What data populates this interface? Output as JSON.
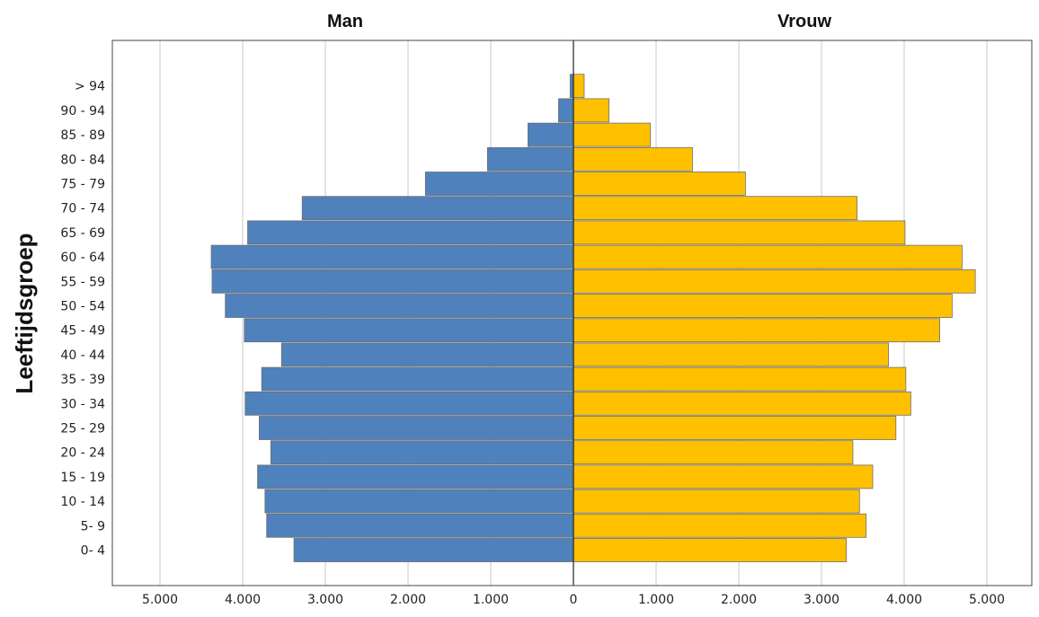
{
  "chart_data": {
    "type": "bar",
    "orientation": "horizontal",
    "subtype": "population-pyramid",
    "ylabel": "Leeftijdsgroep",
    "categories": [
      "0- 4",
      "5- 9",
      "10 - 14",
      "15 - 19",
      "20 - 24",
      "25 - 29",
      "30 - 34",
      "35 - 39",
      "40 - 44",
      "45 - 49",
      "50 - 54",
      "55 - 59",
      "60 - 64",
      "65 - 69",
      "70 - 74",
      "75 - 79",
      "80 - 84",
      "85 - 89",
      "90 - 94",
      "> 94"
    ],
    "series": [
      {
        "name": "Man",
        "color": "#4f81bd",
        "values": [
          3380,
          3710,
          3730,
          3820,
          3660,
          3800,
          3970,
          3770,
          3530,
          3980,
          4210,
          4370,
          4380,
          3940,
          3280,
          1790,
          1040,
          550,
          180,
          40
        ]
      },
      {
        "name": "Vrouw",
        "color": "#ffc000",
        "values": [
          3300,
          3540,
          3460,
          3620,
          3380,
          3900,
          4080,
          4020,
          3810,
          4430,
          4580,
          4860,
          4700,
          4010,
          3430,
          2080,
          1440,
          930,
          430,
          130
        ]
      }
    ],
    "x_ticks": [
      "5.000",
      "4.000",
      "3.000",
      "2.000",
      "1.000",
      "0",
      "1.000",
      "2.000",
      "3.000",
      "4.000",
      "5.000"
    ],
    "xlim": [
      -5500,
      5500
    ],
    "grid": true,
    "legend": "none"
  }
}
